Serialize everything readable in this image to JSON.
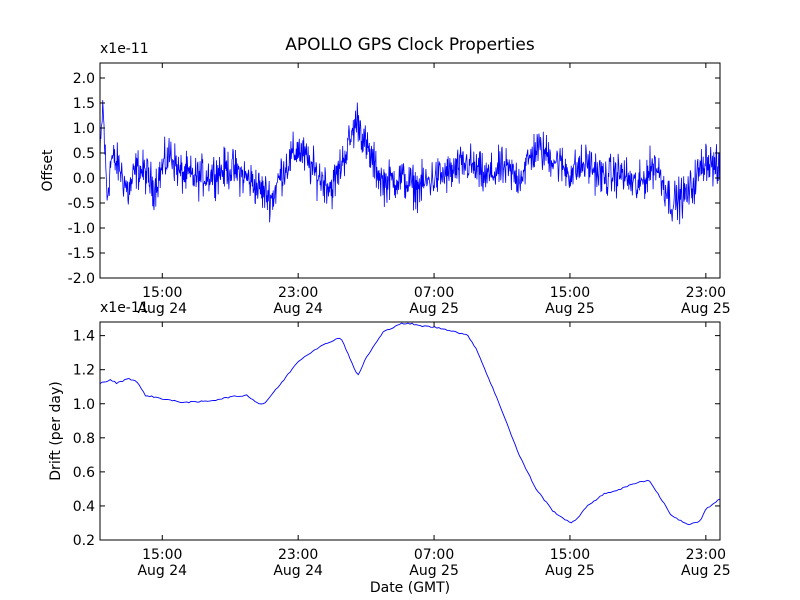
{
  "title": "APOLLO GPS Clock Properties",
  "chart_data": [
    {
      "type": "line",
      "ylabel": "Offset",
      "xlabel": "",
      "y_multiplier": "x1e-11",
      "ylim": [
        -2.0,
        2.3
      ],
      "yticks": [
        -2.0,
        -1.5,
        -1.0,
        -0.5,
        0.0,
        0.5,
        1.0,
        1.5,
        2.0
      ],
      "ytick_labels": [
        "-2.0",
        "-1.5",
        "-1.0",
        "-0.5",
        "0.0",
        "0.5",
        "1.0",
        "1.5",
        "2.0"
      ],
      "xlim": [
        "2011-08-24 11:20",
        "2011-08-25 23:50"
      ],
      "xticks": [
        "2011-08-24 15:00",
        "2011-08-24 23:00",
        "2011-08-25 07:00",
        "2011-08-25 15:00",
        "2011-08-25 23:00"
      ],
      "xtick_labels": [
        {
          "time": "15:00",
          "date": "Aug 24"
        },
        {
          "time": "23:00",
          "date": "Aug 24"
        },
        {
          "time": "07:00",
          "date": "Aug 25"
        },
        {
          "time": "15:00",
          "date": "Aug 25"
        },
        {
          "time": "23:00",
          "date": "Aug 25"
        }
      ],
      "grid": false,
      "line_color": "#0000ff",
      "series": [
        {
          "x": [
            "2011-08-24 11:20",
            "2011-08-24 11:30",
            "2011-08-24 11:45",
            "2011-08-24 12:00",
            "2011-08-24 12:30",
            "2011-08-24 13:00",
            "2011-08-24 13:30",
            "2011-08-24 14:00",
            "2011-08-24 14:30",
            "2011-08-24 15:00",
            "2011-08-24 15:30",
            "2011-08-24 16:00",
            "2011-08-24 17:00",
            "2011-08-24 18:00",
            "2011-08-24 19:00",
            "2011-08-24 20:00",
            "2011-08-24 21:00",
            "2011-08-24 21:30",
            "2011-08-24 22:00",
            "2011-08-24 23:00",
            "2011-08-25 00:00",
            "2011-08-25 01:00",
            "2011-08-25 02:00",
            "2011-08-25 02:30",
            "2011-08-25 03:00",
            "2011-08-25 04:00",
            "2011-08-25 05:00",
            "2011-08-25 06:00",
            "2011-08-25 07:00",
            "2011-08-25 08:00",
            "2011-08-25 09:00",
            "2011-08-25 10:00",
            "2011-08-25 11:00",
            "2011-08-25 12:00",
            "2011-08-25 13:00",
            "2011-08-25 14:00",
            "2011-08-25 15:00",
            "2011-08-25 16:00",
            "2011-08-25 17:00",
            "2011-08-25 18:00",
            "2011-08-25 19:00",
            "2011-08-25 20:00",
            "2011-08-25 21:00",
            "2011-08-25 22:00",
            "2011-08-25 23:00",
            "2011-08-25 23:50"
          ],
          "y": [
            0.3,
            1.5,
            -0.4,
            0.4,
            0.2,
            -0.3,
            0.2,
            0.1,
            -0.2,
            0.2,
            0.5,
            0.1,
            0.0,
            0.1,
            0.2,
            0.0,
            -0.3,
            -0.4,
            0.1,
            0.6,
            0.1,
            -0.2,
            0.7,
            1.2,
            0.6,
            -0.1,
            0.0,
            -0.2,
            0.0,
            0.1,
            0.3,
            0.0,
            0.2,
            0.0,
            0.6,
            0.4,
            0.1,
            0.3,
            0.0,
            0.1,
            -0.2,
            0.3,
            -0.5,
            -0.3,
            0.4,
            0.1
          ],
          "fluctuation_amplitude": 0.45
        }
      ]
    },
    {
      "type": "line",
      "ylabel": "Drift (per day)",
      "xlabel": "Date (GMT)",
      "y_multiplier": "x1e-11",
      "ylim": [
        0.2,
        1.48
      ],
      "yticks": [
        0.2,
        0.4,
        0.6,
        0.8,
        1.0,
        1.2,
        1.4
      ],
      "ytick_labels": [
        "0.2",
        "0.4",
        "0.6",
        "0.8",
        "1.0",
        "1.2",
        "1.4"
      ],
      "xlim": [
        "2011-08-24 11:20",
        "2011-08-25 23:50"
      ],
      "xticks": [
        "2011-08-24 15:00",
        "2011-08-24 23:00",
        "2011-08-25 07:00",
        "2011-08-25 15:00",
        "2011-08-25 23:00"
      ],
      "xtick_labels": [
        {
          "time": "15:00",
          "date": "Aug 24"
        },
        {
          "time": "23:00",
          "date": "Aug 24"
        },
        {
          "time": "07:00",
          "date": "Aug 25"
        },
        {
          "time": "15:00",
          "date": "Aug 25"
        },
        {
          "time": "23:00",
          "date": "Aug 25"
        }
      ],
      "grid": false,
      "line_color": "#0000ff",
      "series": [
        {
          "x": [
            "2011-08-24 11:20",
            "2011-08-24 12:00",
            "2011-08-24 12:20",
            "2011-08-24 13:00",
            "2011-08-24 13:30",
            "2011-08-24 14:00",
            "2011-08-24 15:00",
            "2011-08-24 16:00",
            "2011-08-24 17:00",
            "2011-08-24 18:00",
            "2011-08-24 19:00",
            "2011-08-24 20:00",
            "2011-08-24 20:40",
            "2011-08-24 21:00",
            "2011-08-24 22:00",
            "2011-08-24 23:00",
            "2011-08-25 00:00",
            "2011-08-25 01:00",
            "2011-08-25 01:30",
            "2011-08-25 02:00",
            "2011-08-25 02:30",
            "2011-08-25 03:00",
            "2011-08-25 04:00",
            "2011-08-25 05:00",
            "2011-08-25 05:40",
            "2011-08-25 06:00",
            "2011-08-25 07:00",
            "2011-08-25 08:00",
            "2011-08-25 09:00",
            "2011-08-25 09:30",
            "2011-08-25 10:00",
            "2011-08-25 11:00",
            "2011-08-25 12:00",
            "2011-08-25 13:00",
            "2011-08-25 14:00",
            "2011-08-25 15:00",
            "2011-08-25 15:30",
            "2011-08-25 16:00",
            "2011-08-25 17:00",
            "2011-08-25 18:00",
            "2011-08-25 19:00",
            "2011-08-25 19:40",
            "2011-08-25 20:00",
            "2011-08-25 21:00",
            "2011-08-25 22:00",
            "2011-08-25 22:40",
            "2011-08-25 23:00",
            "2011-08-25 23:50"
          ],
          "y": [
            1.12,
            1.14,
            1.12,
            1.15,
            1.13,
            1.05,
            1.03,
            1.01,
            1.01,
            1.02,
            1.04,
            1.05,
            1.0,
            1.0,
            1.12,
            1.25,
            1.32,
            1.37,
            1.39,
            1.28,
            1.16,
            1.27,
            1.42,
            1.47,
            1.47,
            1.46,
            1.45,
            1.43,
            1.4,
            1.32,
            1.2,
            0.96,
            0.7,
            0.5,
            0.37,
            0.3,
            0.33,
            0.4,
            0.47,
            0.5,
            0.54,
            0.55,
            0.5,
            0.34,
            0.29,
            0.31,
            0.38,
            0.44
          ]
        }
      ]
    }
  ]
}
